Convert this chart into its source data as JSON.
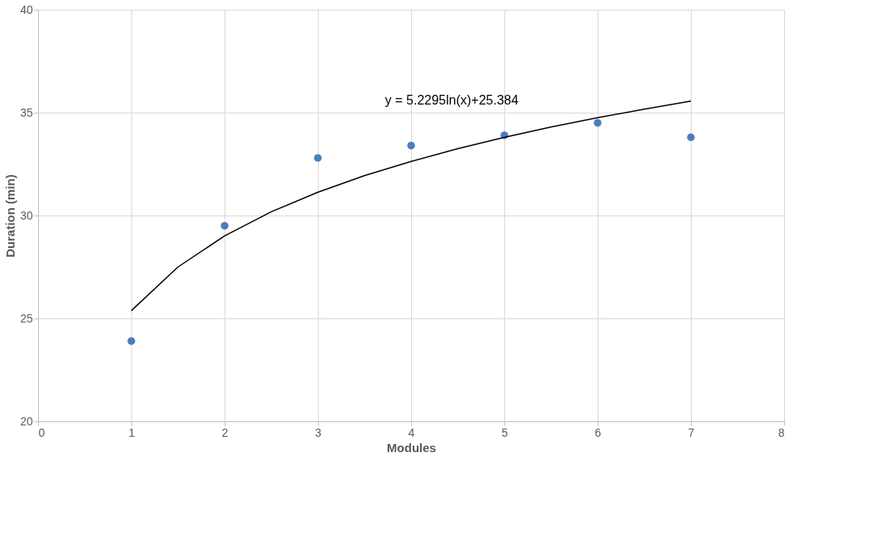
{
  "chart_data": {
    "type": "scatter",
    "xlabel": "Modules",
    "ylabel": "Duration (min)",
    "xlim": [
      0,
      8
    ],
    "xticks": [
      0,
      1,
      2,
      3,
      4,
      5,
      6,
      7,
      8
    ],
    "ylim": [
      20,
      40
    ],
    "yticks": [
      20,
      25,
      30,
      35,
      40
    ],
    "grid": true,
    "marker": "circle",
    "series": [
      {
        "color": "#4a7ebb",
        "x": [
          1,
          2,
          3,
          4,
          5,
          6,
          7
        ],
        "values": [
          23.9,
          29.5,
          32.8,
          33.4,
          33.9,
          34.5,
          33.8
        ]
      },
      {
        "type": "line",
        "color": "#000000",
        "marker": "none",
        "line_style": "solid",
        "x": [
          1,
          1.5,
          2,
          2.5,
          3,
          3.5,
          4,
          4.5,
          5,
          5.5,
          6,
          6.5,
          7
        ],
        "values": [
          25.38,
          27.5,
          29.01,
          30.18,
          31.13,
          31.94,
          32.63,
          33.25,
          33.8,
          34.3,
          34.75,
          35.17,
          35.56
        ]
      }
    ],
    "annotations": [
      "y = 5.2295ln(x)+25.384"
    ]
  }
}
